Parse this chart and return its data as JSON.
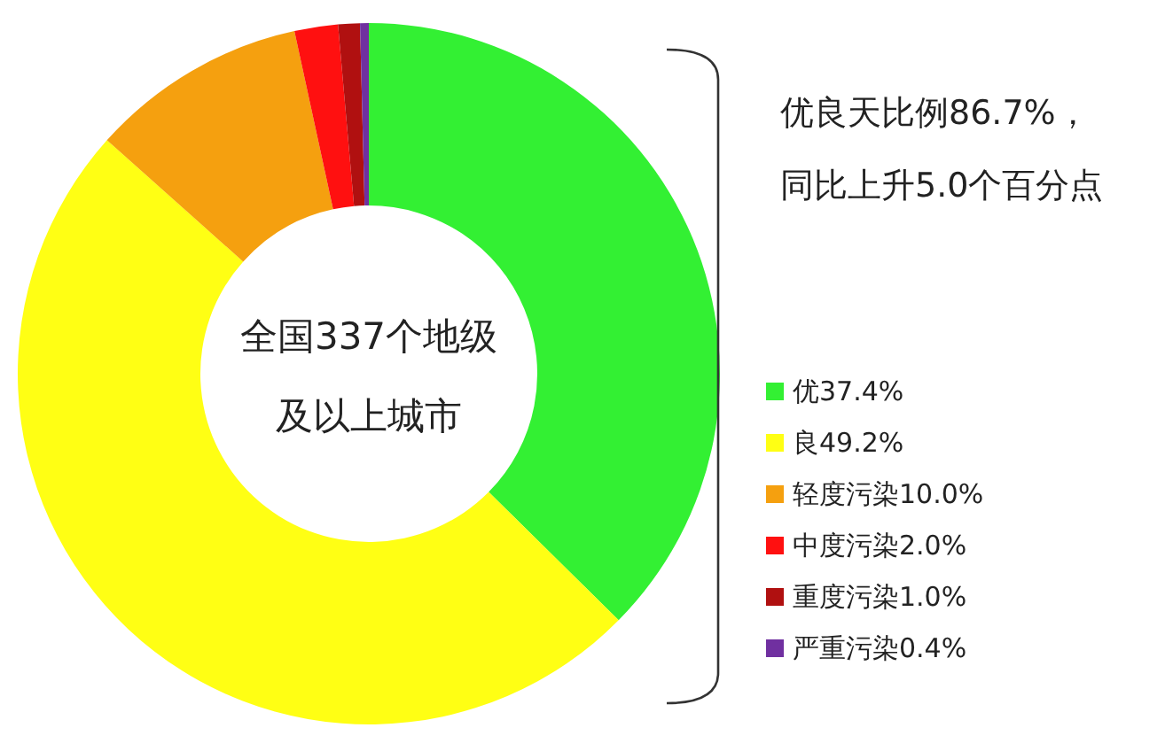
{
  "chart_data": {
    "type": "donut",
    "categories": [
      "优",
      "良",
      "轻度污染",
      "中度污染",
      "重度污染",
      "严重污染"
    ],
    "values": [
      37.4,
      49.2,
      10.0,
      2.0,
      1.0,
      0.4
    ],
    "value_labels": [
      "37.4%",
      "49.2%",
      "10.0%",
      "2.0%",
      "1.0%",
      "0.4%"
    ],
    "colors": [
      "#33f033",
      "#ffff14",
      "#f5a00f",
      "#ff1010",
      "#b01010",
      "#7030a0"
    ],
    "legend": "right",
    "annotations": [
      "优良天比例86.7%，",
      "同比上升5.0个百分点",
      "全国337个地级",
      "及以上城市"
    ]
  }
}
